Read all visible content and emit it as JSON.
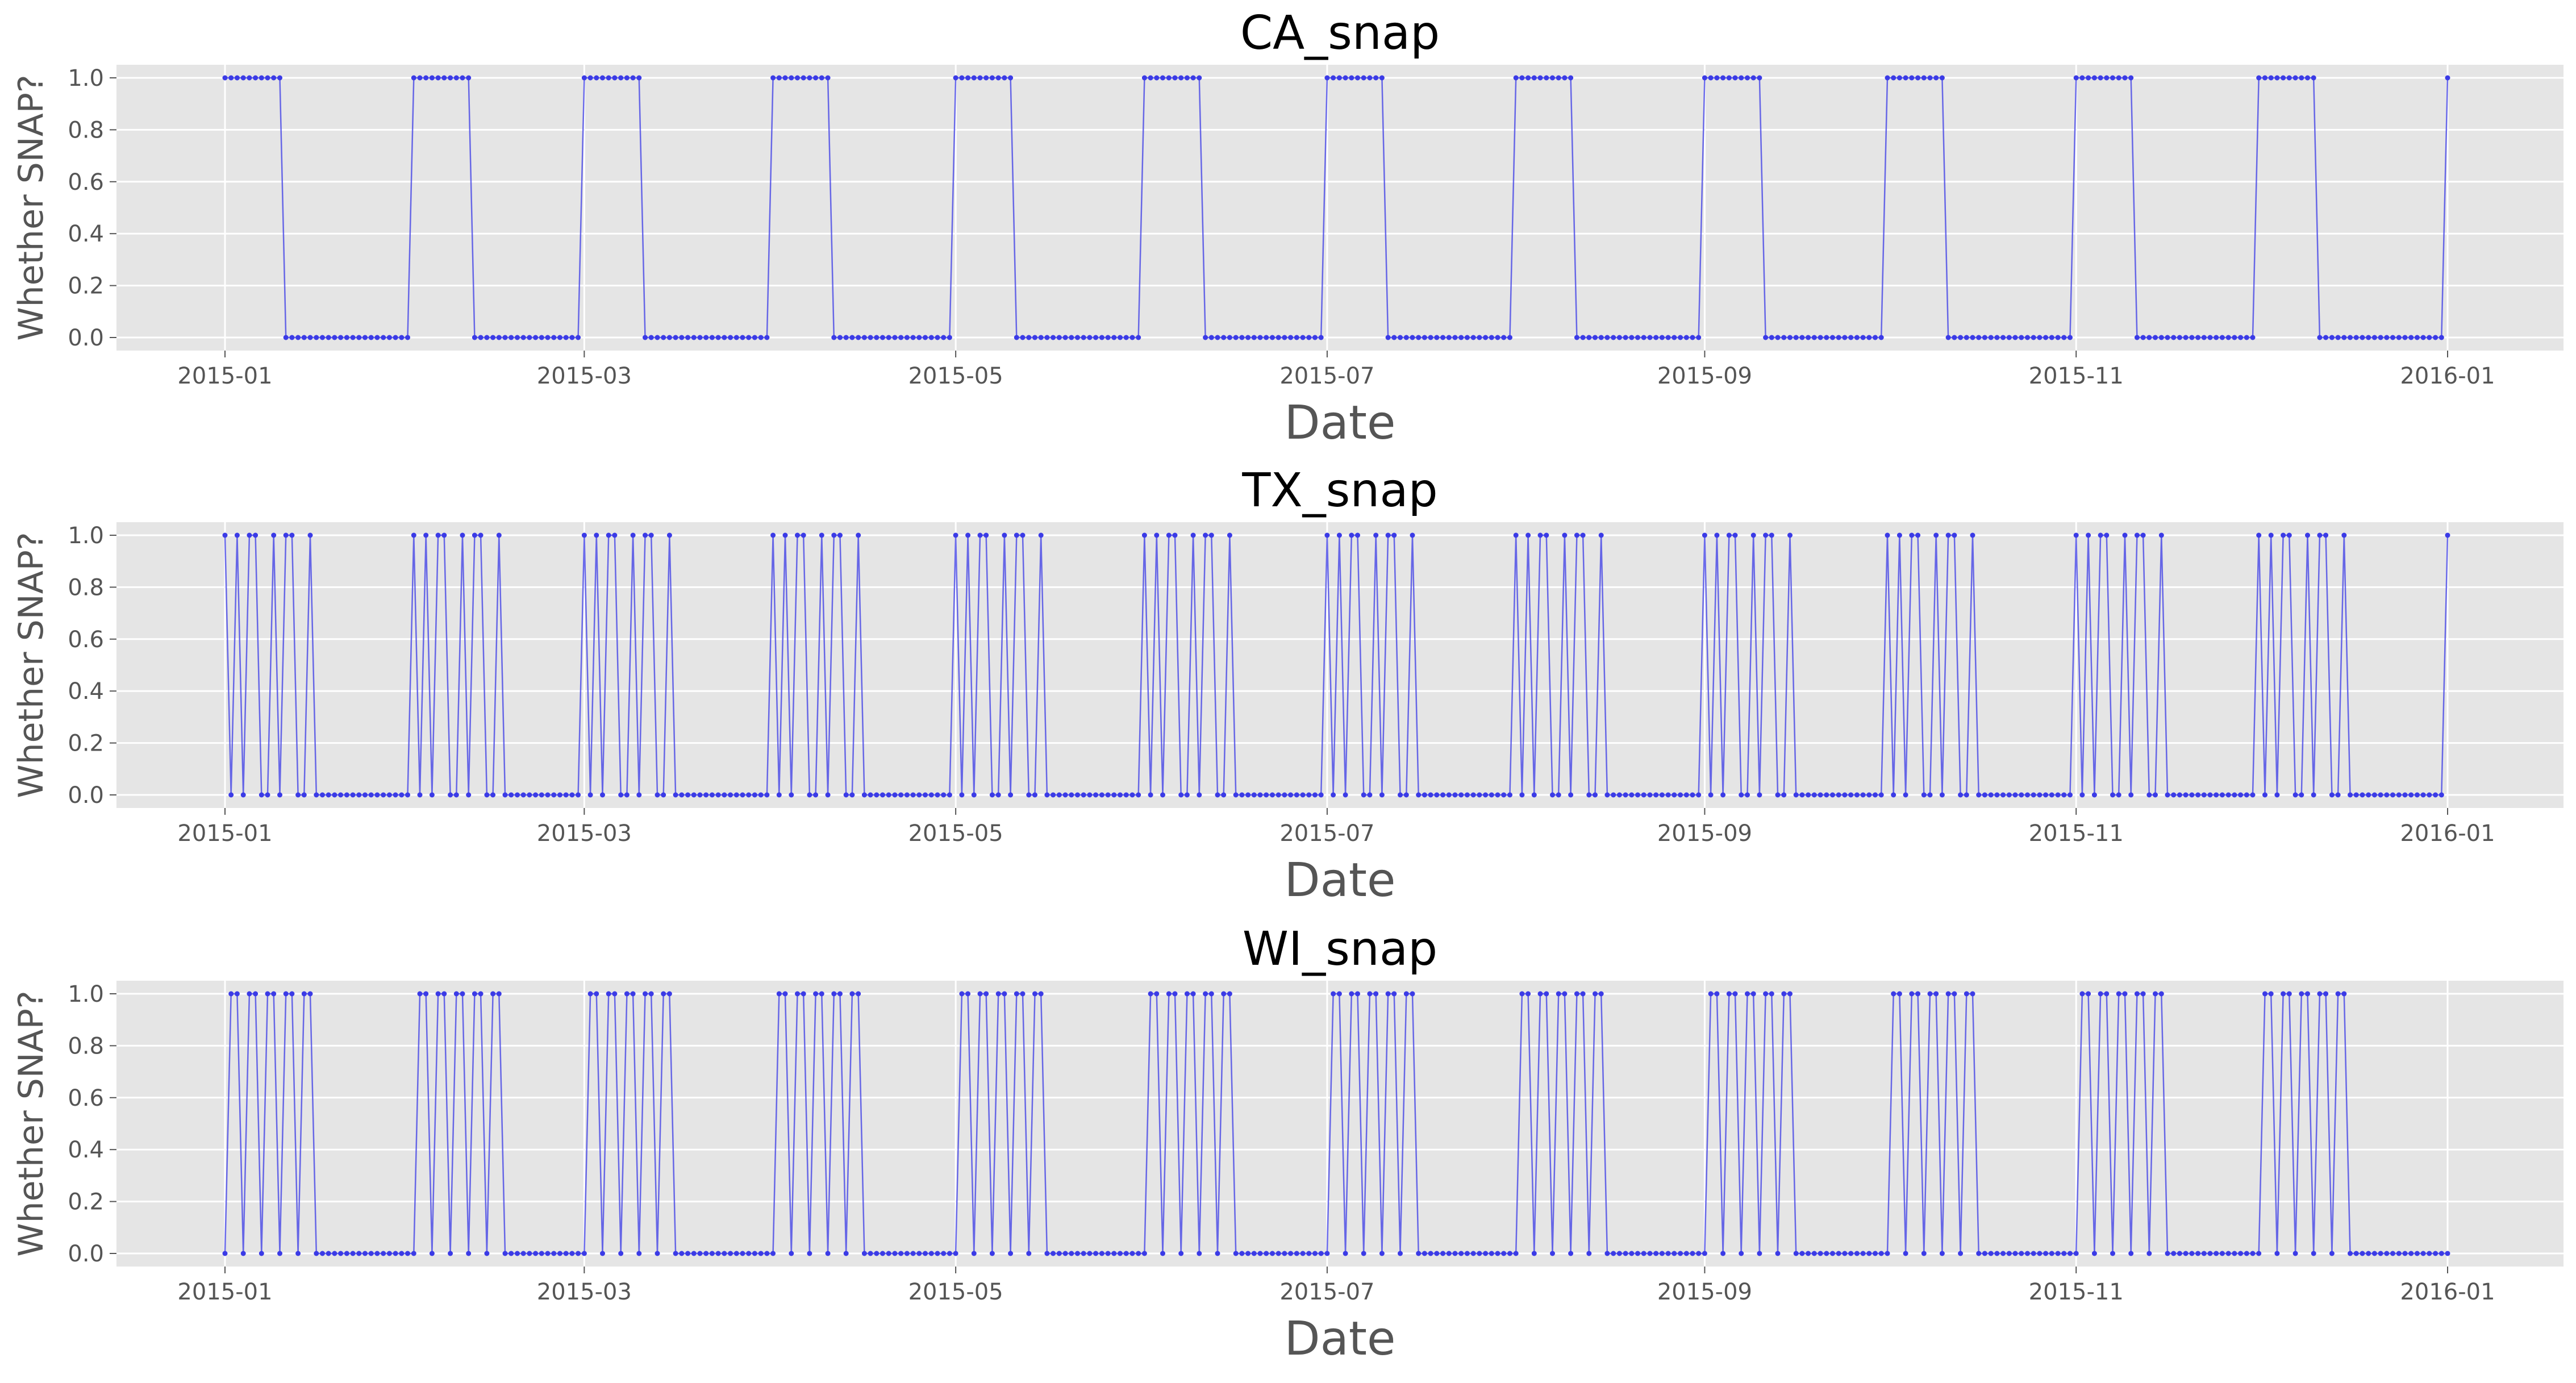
{
  "chart_data": [
    {
      "type": "line",
      "title": "CA_snap",
      "xlabel": "Date",
      "ylabel": "Whether SNAP?",
      "x_range": [
        "2015-01-01",
        "2016-01-01"
      ],
      "ylim": [
        0.0,
        1.0
      ],
      "xticks": [
        "2015-01",
        "2015-03",
        "2015-05",
        "2015-07",
        "2015-09",
        "2015-11",
        "2016-01"
      ],
      "yticks": [
        "0.0",
        "0.2",
        "0.4",
        "0.6",
        "0.8",
        "1.0"
      ],
      "grid": true,
      "snap_days_each_month": [
        1,
        2,
        3,
        4,
        5,
        6,
        7,
        8,
        9,
        10
      ],
      "series": [
        {
          "values_note": "",
          "color": "#3b3be6"
        }
      ]
    },
    {
      "type": "line",
      "title": "TX_snap",
      "xlabel": "Date",
      "ylabel": "Whether SNAP?",
      "x_range": [
        "2015-01-01",
        "2016-01-01"
      ],
      "ylim": [
        0.0,
        1.0
      ],
      "xticks": [
        "2015-01",
        "2015-03",
        "2015-05",
        "2015-07",
        "2015-09",
        "2015-11",
        "2016-01"
      ],
      "yticks": [
        "0.0",
        "0.2",
        "0.4",
        "0.6",
        "0.8",
        "1.0"
      ],
      "grid": true,
      "snap_days_each_month": [
        1,
        3,
        5,
        6,
        9,
        11,
        12,
        15
      ],
      "series": [
        {
          "values_note": "",
          "color": "#3b3be6"
        }
      ]
    },
    {
      "type": "line",
      "title": "WI_snap",
      "xlabel": "Date",
      "ylabel": "Whether SNAP?",
      "x_range": [
        "2015-01-01",
        "2016-01-01"
      ],
      "ylim": [
        0.0,
        1.0
      ],
      "xticks": [
        "2015-01",
        "2015-03",
        "2015-05",
        "2015-07",
        "2015-09",
        "2015-11",
        "2016-01"
      ],
      "yticks": [
        "0.0",
        "0.2",
        "0.4",
        "0.6",
        "0.8",
        "1.0"
      ],
      "grid": true,
      "snap_days_each_month": [
        2,
        3,
        5,
        6,
        8,
        9,
        11,
        12,
        14,
        15
      ],
      "series": [
        {
          "values_note": "",
          "color": "#3b3be6"
        }
      ]
    }
  ],
  "colors": {
    "line": "#3b3be6",
    "plot_background": "#e5e5e5",
    "grid": "#ffffff"
  }
}
